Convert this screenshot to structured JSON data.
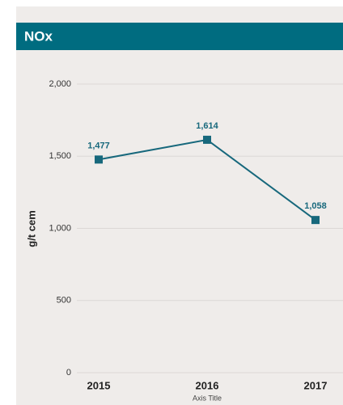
{
  "chart_data": {
    "type": "line",
    "title": "NOx",
    "categories": [
      "2015",
      "2016",
      "2017"
    ],
    "series": [
      {
        "name": "NOx",
        "color": "#17687c",
        "values": [
          1477,
          1614,
          1058
        ],
        "value_labels": [
          "1,477",
          "1,614",
          "1,058"
        ]
      }
    ],
    "ylabel": "g/t cem",
    "xlabel": "Axis Title",
    "ylim": [
      0,
      2000
    ],
    "yticks": [
      0,
      500,
      {
        "value": 1000,
        "label": "1,000"
      },
      {
        "value": 1500,
        "label": "1,500"
      },
      {
        "value": 2000,
        "label": "2,000"
      }
    ],
    "grid": true
  }
}
